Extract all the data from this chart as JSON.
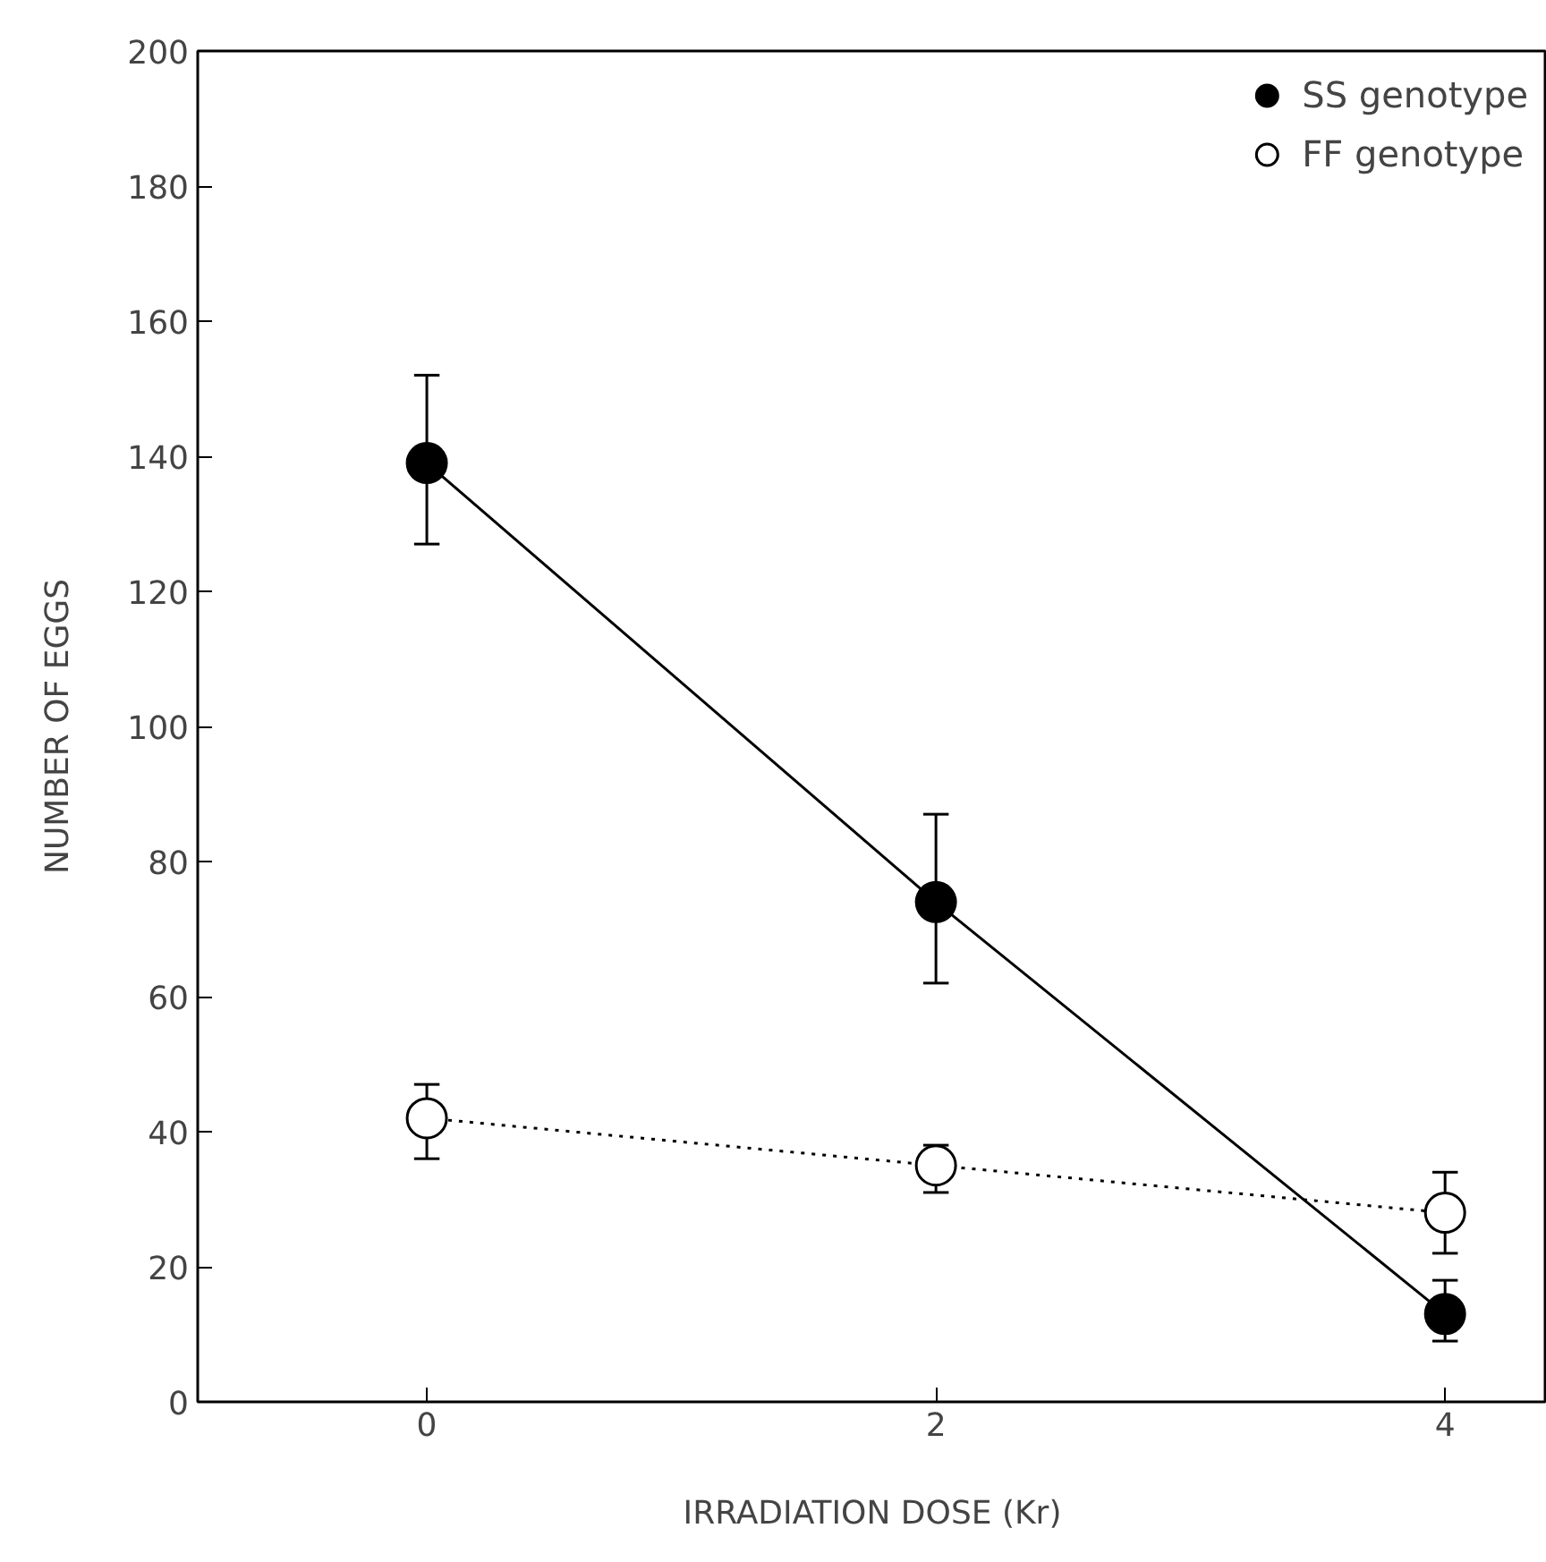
{
  "chart_data": {
    "type": "line",
    "xlabel": "IRRADIATION DOSE (Kr)",
    "ylabel": "NUMBER OF EGGS",
    "x": [
      0,
      2,
      4
    ],
    "series": [
      {
        "name": "SS genotype",
        "color": "#000000",
        "colors": [
          "#000000",
          "#000000",
          "#000000"
        ],
        "line_style": "solid",
        "values": [
          139,
          74,
          13
        ],
        "errors": [
          [
            127,
            152
          ],
          [
            62,
            87
          ],
          [
            9,
            18
          ]
        ]
      },
      {
        "name": "FF genotype",
        "color": "#000000",
        "colors": [
          "#ffffff",
          "#ffffff",
          "#ffffff"
        ],
        "line_style": "dotted",
        "values": [
          42,
          35,
          28
        ],
        "errors": [
          [
            36,
            47
          ],
          [
            31,
            38
          ],
          [
            22,
            34
          ]
        ]
      }
    ],
    "xlim": [
      -0.9,
      4.4
    ],
    "xticks": [
      0,
      2,
      4
    ],
    "ylim": [
      0,
      200
    ],
    "yticks": [
      0,
      20,
      40,
      60,
      80,
      100,
      120,
      140,
      160,
      180,
      200
    ],
    "marker": "circle",
    "grid": false,
    "legend": "top right"
  }
}
